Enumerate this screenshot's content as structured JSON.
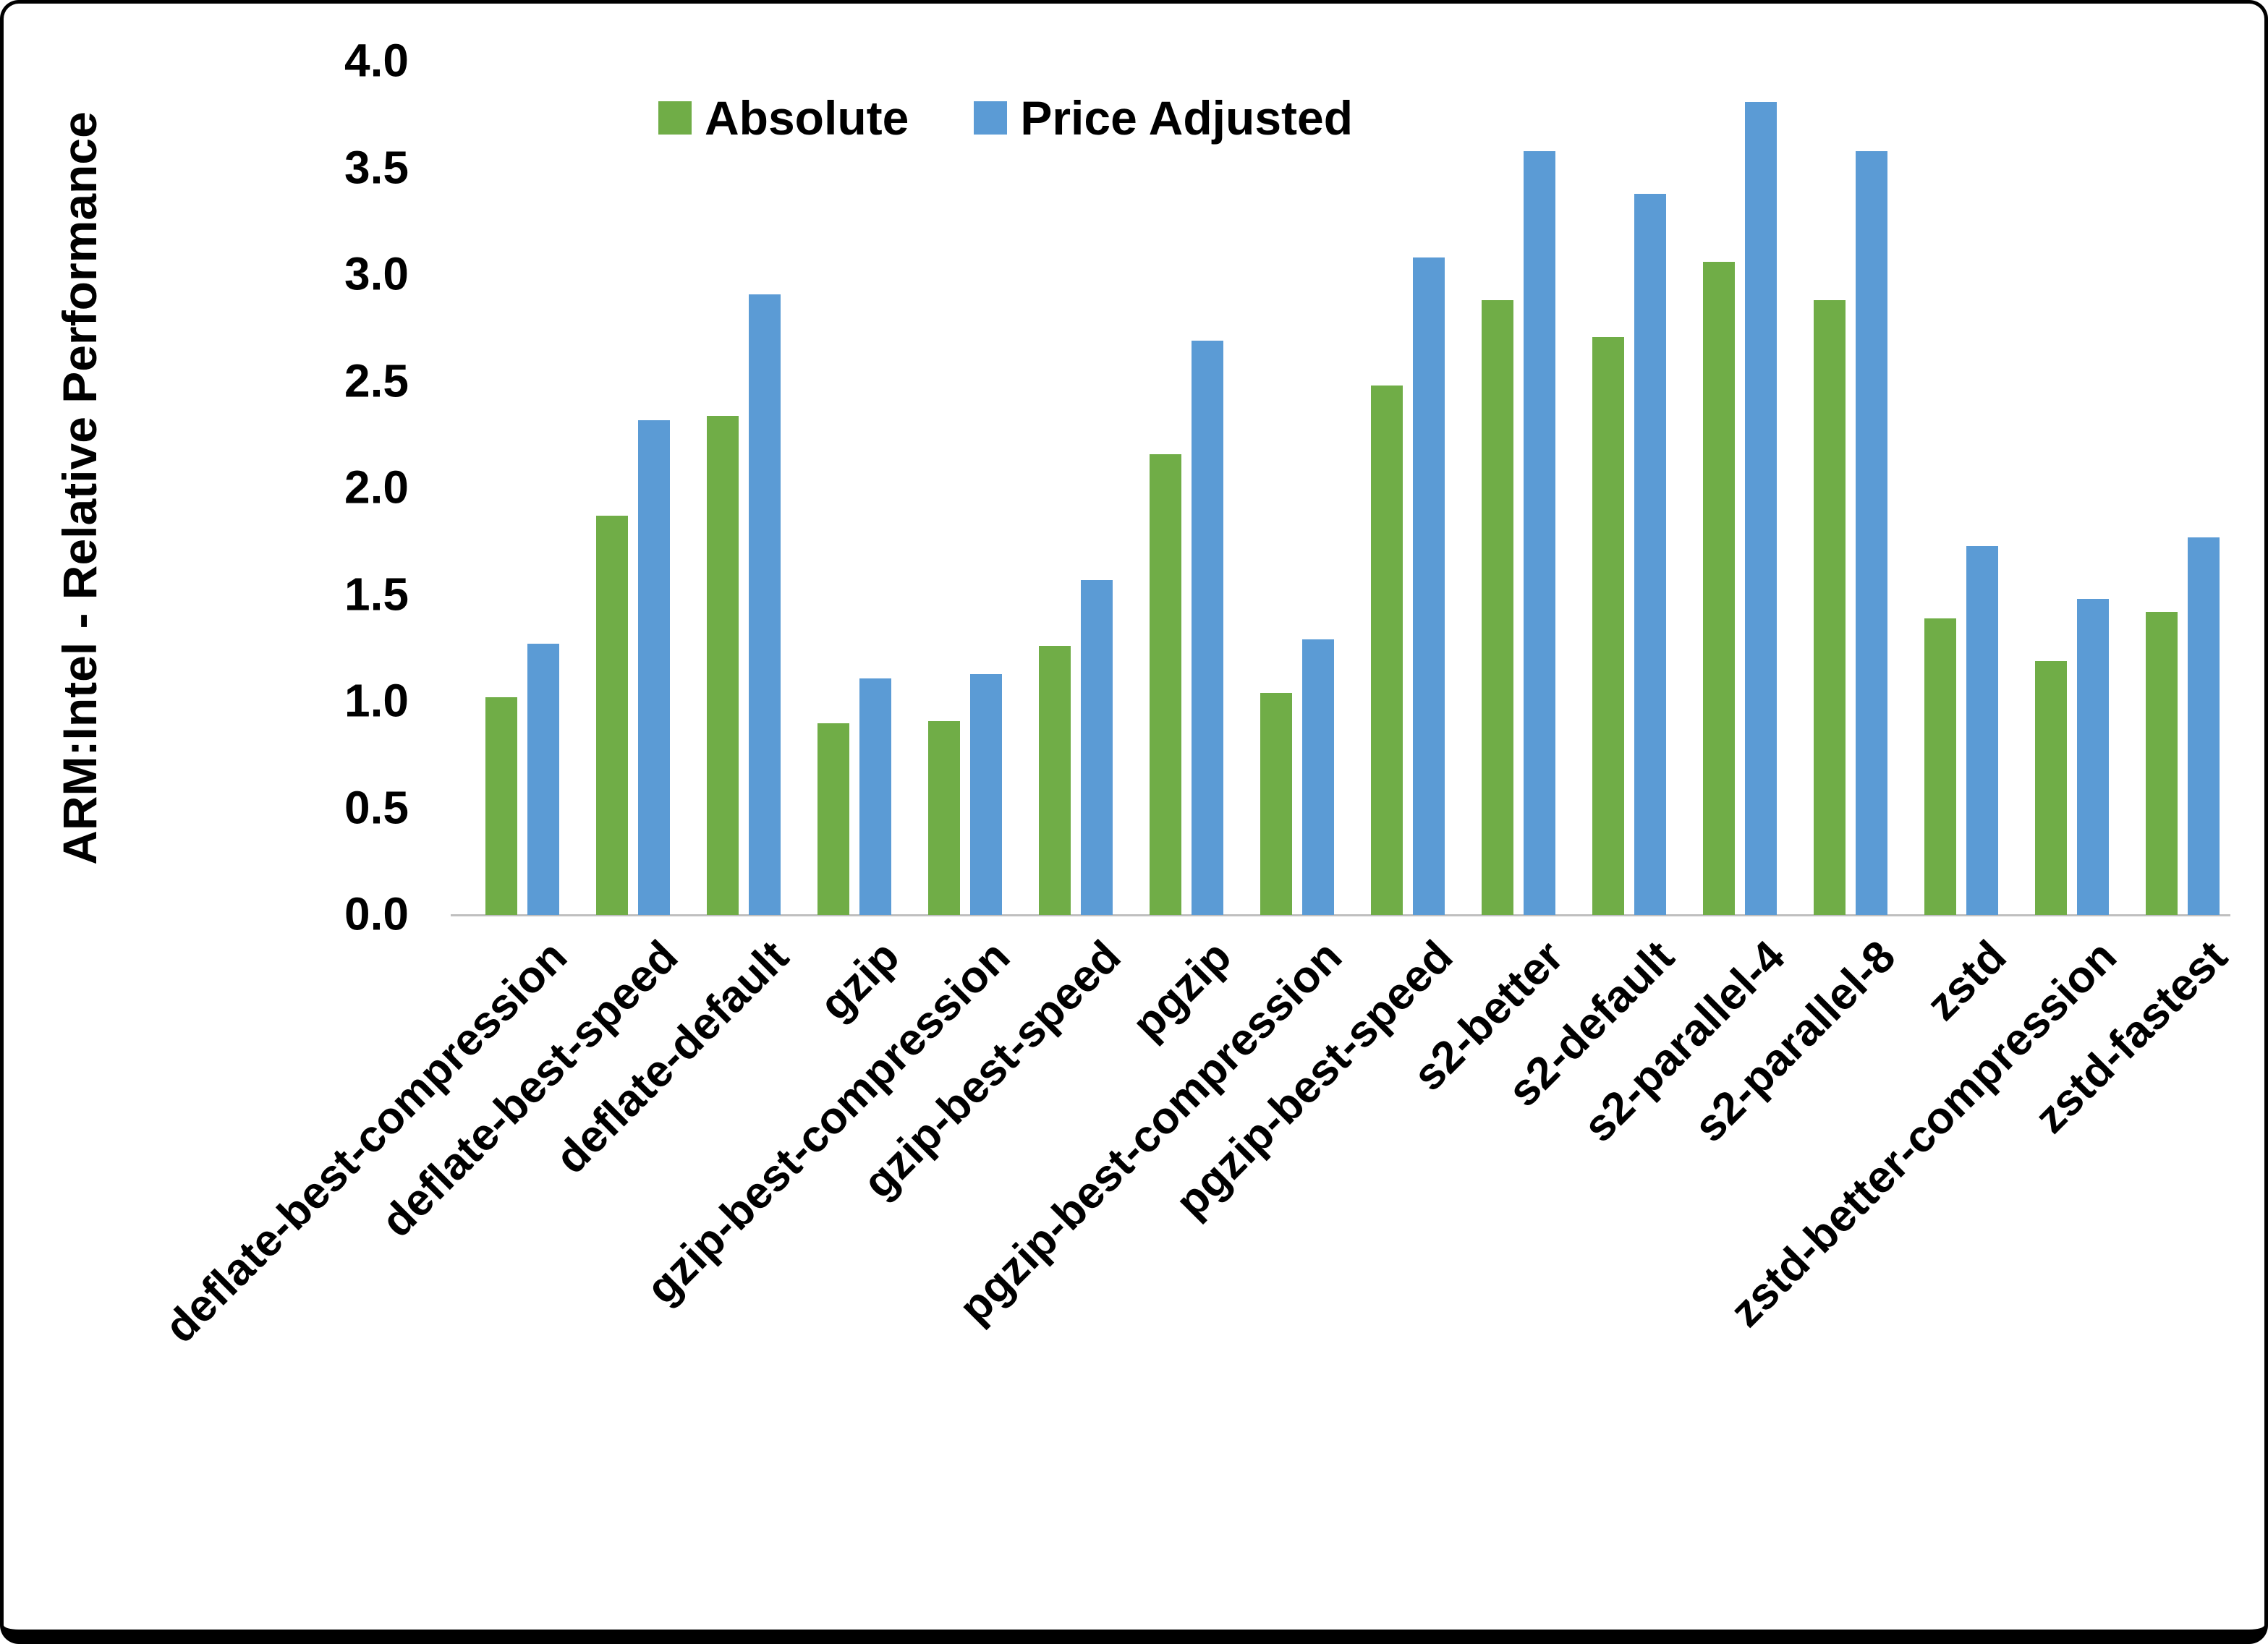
{
  "chart_data": {
    "type": "bar",
    "title": "",
    "xlabel": "",
    "ylabel": "ARM:Intel - Relative Performance",
    "ylim": [
      0,
      4.0
    ],
    "ytick_step": 0.5,
    "yticks": [
      "4.0",
      "3.5",
      "3.0",
      "2.5",
      "2.0",
      "1.5",
      "1.0",
      "0.5",
      "0.0"
    ],
    "grid": false,
    "legend_position": "top-center",
    "categories": [
      "deflate-best-compression",
      "deflate-best-speed",
      "deflate-default",
      "gzip",
      "gzip-best-compression",
      "gzip-best-speed",
      "pgzip",
      "pgzip-best-compression",
      "pgzip-best-speed",
      "s2-better",
      "s2-default",
      "s2-parallel-4",
      "s2-parallel-8",
      "zstd",
      "zstd-better-compression",
      "zstd-fastest"
    ],
    "series": [
      {
        "name": "Absolute",
        "color": "#70AD47",
        "values": [
          1.02,
          1.87,
          2.34,
          0.9,
          0.91,
          1.26,
          2.16,
          1.04,
          2.48,
          2.88,
          2.71,
          3.06,
          2.88,
          1.39,
          1.19,
          1.42
        ]
      },
      {
        "name": "Price Adjusted",
        "color": "#5B9BD5",
        "values": [
          1.27,
          2.32,
          2.91,
          1.11,
          1.13,
          1.57,
          2.69,
          1.29,
          3.08,
          3.58,
          3.38,
          3.81,
          3.58,
          1.73,
          1.48,
          1.77
        ]
      }
    ]
  },
  "colors": {
    "background": "#FFFFFF",
    "border": "#000000",
    "axis_line": "#BFBFBF",
    "text": "#000000"
  }
}
